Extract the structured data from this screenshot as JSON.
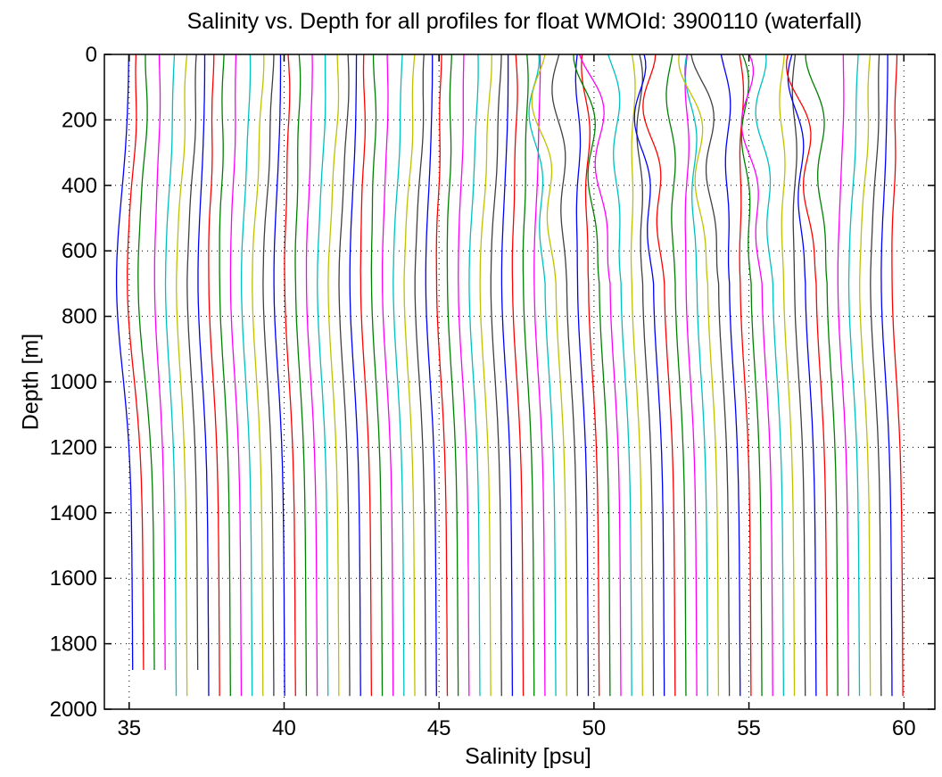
{
  "chart_data": {
    "type": "line",
    "title": "Salinity vs. Depth for all profiles for float WMOId: 3900110 (waterfall)",
    "xlabel": "Salinity [psu]",
    "ylabel": "Depth [m]",
    "xlim": [
      34.2,
      61
    ],
    "ylim": [
      0,
      2000
    ],
    "y_reversed": true,
    "xticks": [
      "35",
      "40",
      "45",
      "50",
      "55",
      "60"
    ],
    "yticks": [
      "0",
      "200",
      "400",
      "600",
      "800",
      "1000",
      "1200",
      "1400",
      "1600",
      "1800",
      "2000"
    ],
    "grid": "dotted",
    "profile_count": 72,
    "profile_offset_psu": 0.35,
    "base_salinity": 35.0,
    "colors": [
      "#0000ff",
      "#ff0000",
      "#008000",
      "#ff00ff",
      "#00c0c0",
      "#c0c000",
      "#404040"
    ]
  }
}
